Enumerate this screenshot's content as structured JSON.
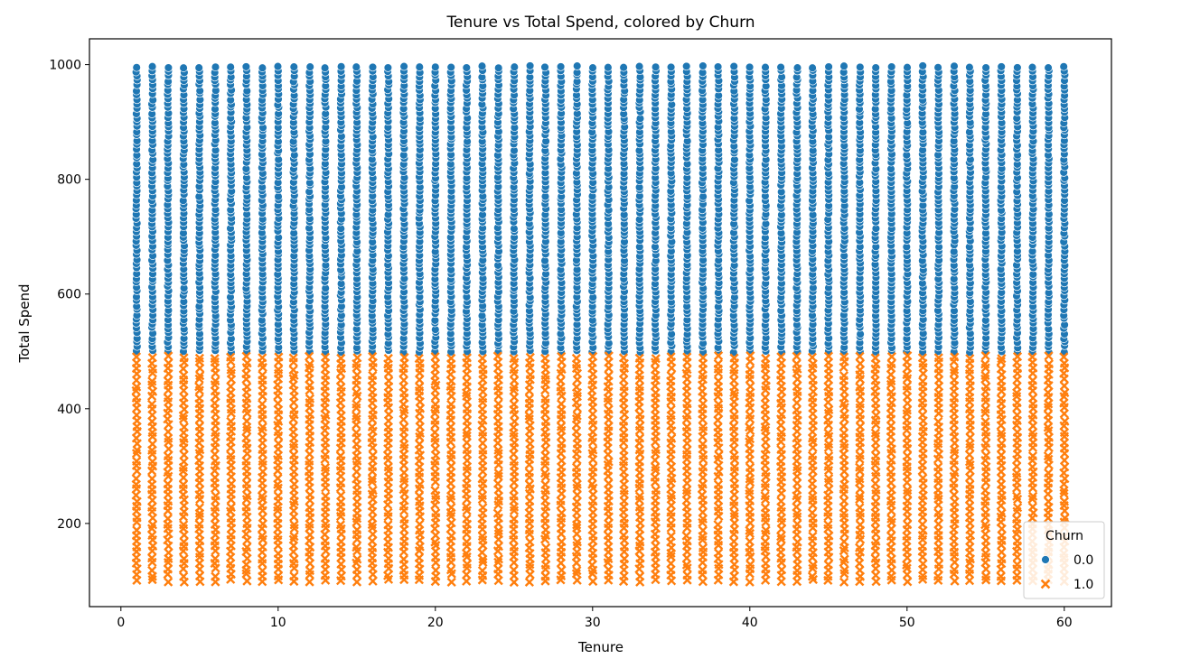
{
  "chart_data": {
    "type": "scatter",
    "title": "Tenure vs Total Spend, colored by Churn",
    "xlabel": "Tenure",
    "ylabel": "Total Spend",
    "xlim": [
      -2,
      63
    ],
    "ylim": [
      55,
      1045
    ],
    "xticks": [
      0,
      10,
      20,
      30,
      40,
      50,
      60
    ],
    "yticks": [
      200,
      400,
      600,
      800,
      1000
    ],
    "grid": false,
    "legend": {
      "title": "Churn",
      "placement": "lower right",
      "entries": [
        "0.0",
        "1.0"
      ]
    },
    "series": [
      {
        "name": "0.0",
        "marker": "circle",
        "color": "#1f77b4",
        "x_values": "integers 1 to 60",
        "y_range": [
          500,
          1000
        ]
      },
      {
        "name": "1.0",
        "marker": "x",
        "color": "#ff7f0e",
        "x_values": "integers 1 to 60",
        "y_range": [
          100,
          490
        ]
      }
    ]
  }
}
